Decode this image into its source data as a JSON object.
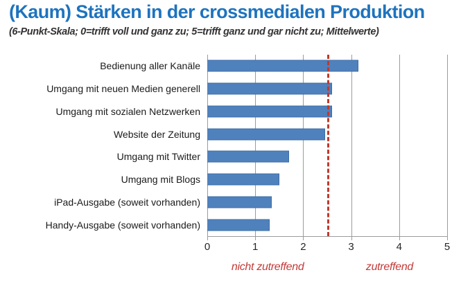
{
  "title": "(Kaum) Stärken in der crossmedialen Produktion",
  "subtitle": "(6-Punkt-Skala; 0=trifft voll und ganz zu; 5=trifft ganz und gar nicht zu; Mittelwerte)",
  "colors": {
    "title": "#1E73BE",
    "bar": "#4F81BD",
    "bar_border": "#3D6DA5",
    "gridline": "#9B9B9B",
    "reference_line": "#C0392B",
    "axis_caption": "#C23B38"
  },
  "chart_data": {
    "type": "bar",
    "orientation": "horizontal",
    "title": "(Kaum) Stärken in der crossmedialen Produktion",
    "subtitle": "(6-Punkt-Skala; 0=trifft voll und ganz zu; 5=trifft ganz und gar nicht zu; Mittelwerte)",
    "categories": [
      "Bedienung aller Kanäle",
      "Umgang mit neuen Medien generell",
      "Umgang mit sozialen Netzwerken",
      "Website der Zeitung",
      "Umgang mit Twitter",
      "Umgang mit Blogs",
      "iPad-Ausgabe (soweit vorhanden)",
      "Handy-Ausgabe (soweit vorhanden)"
    ],
    "values": [
      3.15,
      2.6,
      2.6,
      2.45,
      1.7,
      1.5,
      1.35,
      1.3
    ],
    "xlim": [
      0,
      5
    ],
    "x_ticks": [
      "0",
      "1",
      "2",
      "3",
      "4",
      "5"
    ],
    "grid": "vertical",
    "reference_line_x": 2.5,
    "axis_captions": [
      {
        "label": "nicht zutreffend",
        "x": 1.26
      },
      {
        "label": "zutreffend",
        "x": 3.8
      }
    ],
    "legend": "none"
  }
}
